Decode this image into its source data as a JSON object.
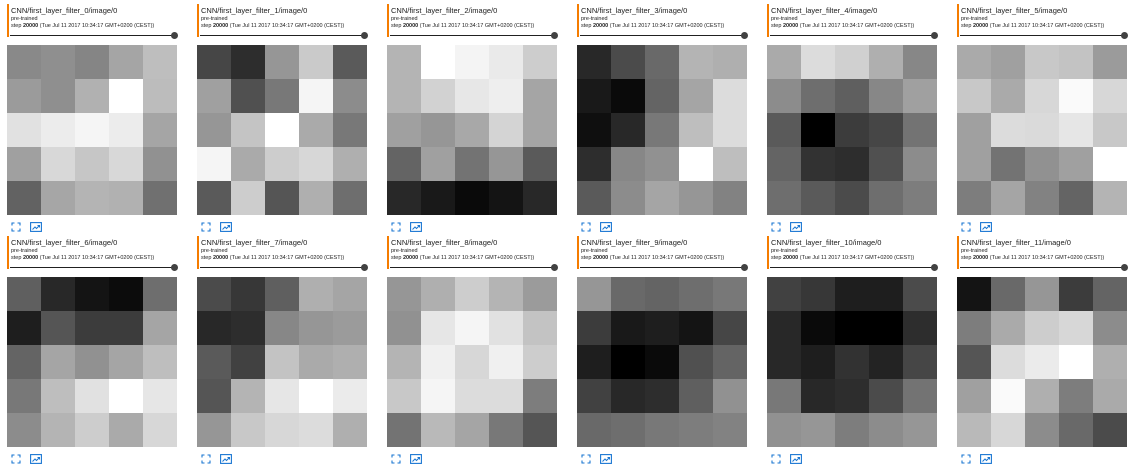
{
  "accent_color": "#f57c00",
  "icon_color": "#1976d2",
  "icons": {
    "fullscreen": "fullscreen-icon",
    "fit_image": "fit-image-icon"
  },
  "cards": [
    {
      "title": "CNN/first_layer_filter_0/image/0",
      "run": "pre-trained",
      "step_label": "step",
      "step_value": "20000",
      "time": "(Tue Jul 11 2017 10:34:17 GMT+0200 (CEST))",
      "pixels": [
        [
          137,
          143,
          133,
          165,
          190
        ],
        [
          155,
          143,
          177,
          255,
          188
        ],
        [
          225,
          236,
          245,
          236,
          165
        ],
        [
          160,
          216,
          198,
          216,
          145
        ],
        [
          98,
          166,
          180,
          177,
          112
        ]
      ]
    },
    {
      "title": "CNN/first_layer_filter_1/image/0",
      "run": "pre-trained",
      "step_label": "step",
      "step_value": "20000",
      "time": "(Tue Jul 11 2017 10:34:17 GMT+0200 (CEST))",
      "pixels": [
        [
          70,
          45,
          150,
          202,
          90
        ],
        [
          160,
          80,
          120,
          245,
          140
        ],
        [
          150,
          196,
          255,
          170,
          120
        ],
        [
          245,
          170,
          205,
          215,
          175
        ],
        [
          90,
          205,
          85,
          175,
          110
        ]
      ]
    },
    {
      "title": "CNN/first_layer_filter_2/image/0",
      "run": "pre-trained",
      "step_label": "step",
      "step_value": "20000",
      "time": "(Tue Jul 11 2017 10:34:17 GMT+0200 (CEST))",
      "pixels": [
        [
          180,
          255,
          244,
          234,
          205
        ],
        [
          180,
          210,
          231,
          238,
          165
        ],
        [
          160,
          150,
          168,
          212,
          165
        ],
        [
          100,
          160,
          115,
          150,
          90
        ],
        [
          40,
          25,
          10,
          20,
          40
        ]
      ]
    },
    {
      "title": "CNN/first_layer_filter_3/image/0",
      "run": "pre-trained",
      "step_label": "step",
      "step_value": "20000",
      "time": "(Tue Jul 11 2017 10:34:17 GMT+0200 (CEST))",
      "pixels": [
        [
          40,
          75,
          105,
          180,
          175
        ],
        [
          25,
          10,
          100,
          165,
          220
        ],
        [
          15,
          40,
          120,
          190,
          220
        ],
        [
          45,
          135,
          145,
          255,
          190
        ],
        [
          90,
          140,
          165,
          150,
          130
        ]
      ]
    },
    {
      "title": "CNN/first_layer_filter_4/image/0",
      "run": "pre-trained",
      "step_label": "step",
      "step_value": "20000",
      "time": "(Tue Jul 11 2017 10:34:17 GMT+0200 (CEST))",
      "pixels": [
        [
          170,
          220,
          208,
          175,
          135
        ],
        [
          140,
          110,
          95,
          135,
          160
        ],
        [
          90,
          0,
          60,
          70,
          115
        ],
        [
          100,
          50,
          45,
          80,
          140
        ],
        [
          110,
          90,
          75,
          110,
          125
        ]
      ]
    },
    {
      "title": "CNN/first_layer_filter_5/image/0",
      "run": "pre-trained",
      "step_label": "step",
      "step_value": "20000",
      "time": "(Tue Jul 11 2017 10:34:17 GMT+0200 (CEST))",
      "pixels": [
        [
          170,
          160,
          200,
          195,
          155
        ],
        [
          200,
          170,
          215,
          250,
          215
        ],
        [
          160,
          220,
          218,
          230,
          200
        ],
        [
          160,
          115,
          145,
          160,
          255
        ],
        [
          125,
          165,
          130,
          100,
          180
        ]
      ]
    },
    {
      "title": "CNN/first_layer_filter_6/image/0",
      "run": "pre-trained",
      "step_label": "step",
      "step_value": "20000",
      "time": "(Tue Jul 11 2017 10:34:17 GMT+0200 (CEST))",
      "pixels": [
        [
          95,
          40,
          20,
          12,
          110
        ],
        [
          30,
          85,
          60,
          60,
          165
        ],
        [
          100,
          165,
          145,
          165,
          190
        ],
        [
          120,
          190,
          225,
          255,
          230
        ],
        [
          140,
          180,
          205,
          170,
          215
        ]
      ]
    },
    {
      "title": "CNN/first_layer_filter_7/image/0",
      "run": "pre-trained",
      "step_label": "step",
      "step_value": "20000",
      "time": "(Tue Jul 11 2017 10:34:17 GMT+0200 (CEST))",
      "pixels": [
        [
          75,
          55,
          95,
          175,
          165
        ],
        [
          40,
          45,
          135,
          150,
          155
        ],
        [
          90,
          65,
          195,
          170,
          175
        ],
        [
          85,
          180,
          230,
          255,
          235
        ],
        [
          150,
          200,
          215,
          220,
          175
        ]
      ]
    },
    {
      "title": "CNN/first_layer_filter_8/image/0",
      "run": "pre-trained",
      "step_label": "step",
      "step_value": "20000",
      "time": "(Tue Jul 11 2017 10:34:17 GMT+0200 (CEST))",
      "pixels": [
        [
          150,
          175,
          205,
          180,
          155
        ],
        [
          145,
          230,
          245,
          225,
          195
        ],
        [
          180,
          240,
          215,
          240,
          205
        ],
        [
          200,
          245,
          220,
          220,
          125
        ],
        [
          115,
          185,
          165,
          120,
          85
        ]
      ]
    },
    {
      "title": "CNN/first_layer_filter_9/image/0",
      "run": "pre-trained",
      "step_label": "step",
      "step_value": "20000",
      "time": "(Tue Jul 11 2017 10:34:17 GMT+0200 (CEST))",
      "pixels": [
        [
          150,
          105,
          100,
          110,
          120
        ],
        [
          60,
          25,
          30,
          20,
          70
        ],
        [
          30,
          0,
          10,
          80,
          100
        ],
        [
          65,
          40,
          45,
          95,
          145
        ],
        [
          105,
          110,
          120,
          125,
          130
        ]
      ]
    },
    {
      "title": "CNN/first_layer_filter_10/image/0",
      "run": "pre-trained",
      "step_label": "step",
      "step_value": "20000",
      "time": "(Tue Jul 11 2017 10:34:17 GMT+0200 (CEST))",
      "pixels": [
        [
          65,
          55,
          30,
          30,
          75
        ],
        [
          40,
          10,
          0,
          0,
          45
        ],
        [
          40,
          30,
          50,
          35,
          70
        ],
        [
          120,
          40,
          45,
          75,
          115
        ],
        [
          145,
          150,
          125,
          140,
          150
        ]
      ]
    },
    {
      "title": "CNN/first_layer_filter_11/image/0",
      "run": "pre-trained",
      "step_label": "step",
      "step_value": "20000",
      "time": "(Tue Jul 11 2017 10:34:17 GMT+0200 (CEST))",
      "pixels": [
        [
          20,
          105,
          150,
          60,
          100
        ],
        [
          125,
          170,
          205,
          215,
          140
        ],
        [
          85,
          220,
          235,
          255,
          175
        ],
        [
          160,
          250,
          175,
          125,
          170
        ],
        [
          185,
          215,
          140,
          105,
          75
        ]
      ]
    }
  ]
}
